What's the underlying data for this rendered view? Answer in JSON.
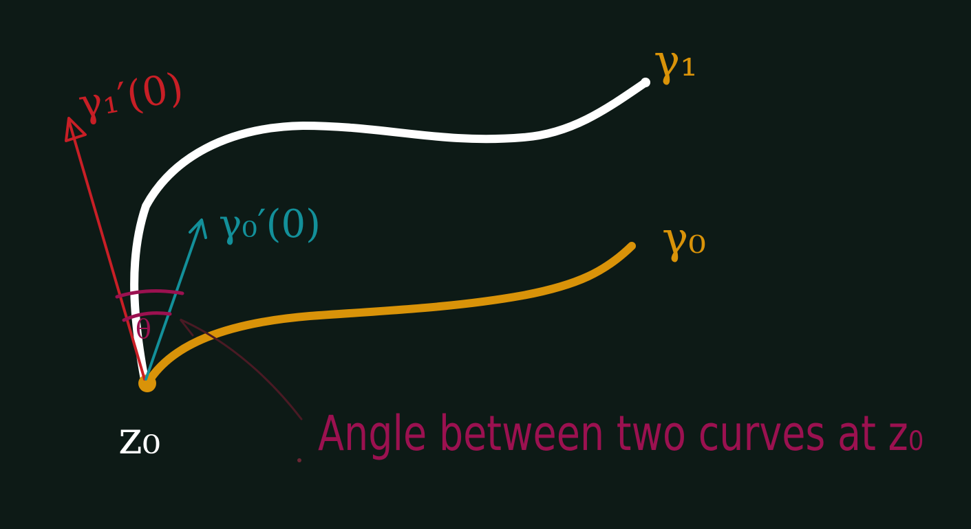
{
  "colors": {
    "background": "#0d1a16",
    "curve_gamma1": "#ffffff",
    "curve_gamma0": "#d99309",
    "tangent_gamma1": "#c81f26",
    "tangent_gamma0": "#13909a",
    "angle_annotation": "#9b1150",
    "pointer": "#4a1a24"
  },
  "labels": {
    "gamma1": "γ₁",
    "gamma0": "γ₀",
    "tangent_gamma1": "γ₁′(0)",
    "tangent_gamma0": "γ₀′(0)",
    "angle_symbol": "θ",
    "point": "z₀",
    "caption": "Angle between two curves at z₀"
  }
}
